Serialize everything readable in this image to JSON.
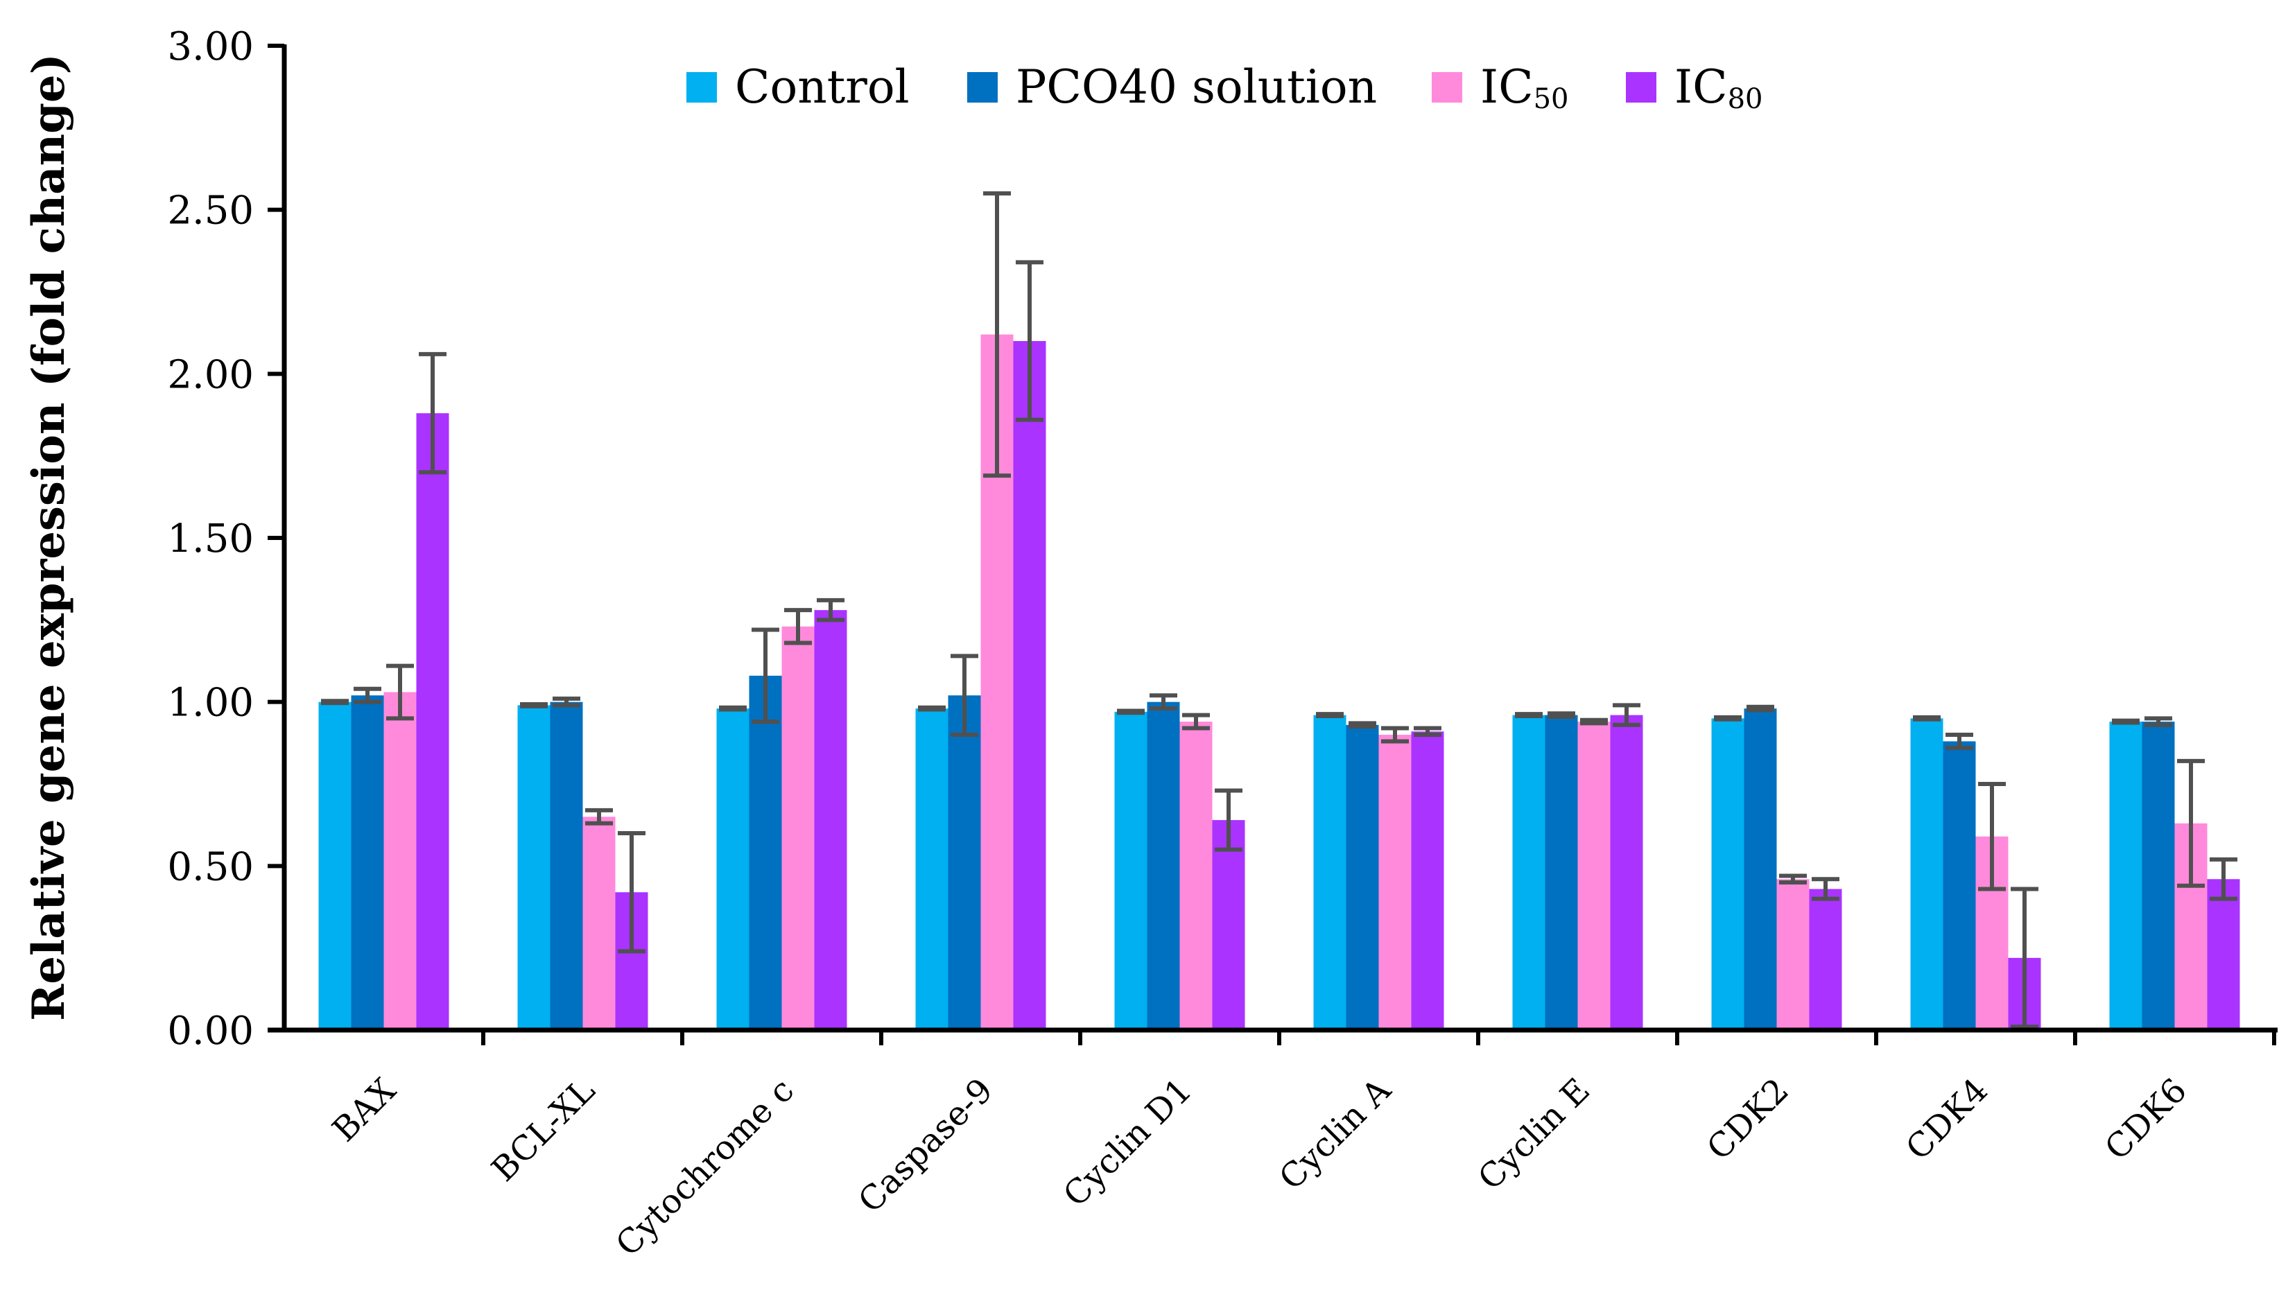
{
  "chart_data": {
    "type": "bar",
    "title": "",
    "xlabel": "",
    "ylabel": "Relative gene expression (fold change)",
    "ylim": [
      0,
      3
    ],
    "yticks": [
      "0.00",
      "0.50",
      "1.00",
      "1.50",
      "2.00",
      "2.50",
      "3.00"
    ],
    "grid": false,
    "legend_position": "top",
    "categories": [
      "BAX",
      "BCL-XL",
      "Cytochrome c",
      "Caspase-9",
      "Cyclin D1",
      "Cyclin A",
      "Cyclin E",
      "CDK2",
      "CDK4",
      "CDK6"
    ],
    "series": [
      {
        "name": "Control",
        "sub": "",
        "color": "#00B0F0",
        "values": [
          1.0,
          0.99,
          0.98,
          0.98,
          0.97,
          0.96,
          0.96,
          0.95,
          0.95,
          0.94
        ],
        "errors": [
          0.003,
          0.003,
          0.003,
          0.003,
          0.003,
          0.003,
          0.003,
          0.003,
          0.003,
          0.003
        ]
      },
      {
        "name": "PCO40 solution",
        "sub": "",
        "color": "#0070C0",
        "values": [
          1.02,
          1.0,
          1.08,
          1.02,
          1.0,
          0.93,
          0.96,
          0.98,
          0.88,
          0.94
        ],
        "errors": [
          0.02,
          0.01,
          0.14,
          0.12,
          0.02,
          0.005,
          0.005,
          0.005,
          0.02,
          0.01
        ]
      },
      {
        "name": "IC",
        "sub": "50",
        "color": "#FF8ADB",
        "values": [
          1.03,
          0.65,
          1.23,
          2.12,
          0.94,
          0.9,
          0.94,
          0.46,
          0.59,
          0.63
        ],
        "errors": [
          0.08,
          0.02,
          0.05,
          0.43,
          0.02,
          0.02,
          0.005,
          0.01,
          0.16,
          0.19
        ]
      },
      {
        "name": "IC",
        "sub": "80",
        "color": "#AA33FF",
        "values": [
          1.88,
          0.42,
          1.28,
          2.1,
          0.64,
          0.91,
          0.96,
          0.43,
          0.22,
          0.46
        ],
        "errors": [
          0.18,
          0.18,
          0.03,
          0.24,
          0.09,
          0.01,
          0.03,
          0.03,
          0.21,
          0.06
        ]
      }
    ],
    "error_bar_color": "#505050"
  }
}
